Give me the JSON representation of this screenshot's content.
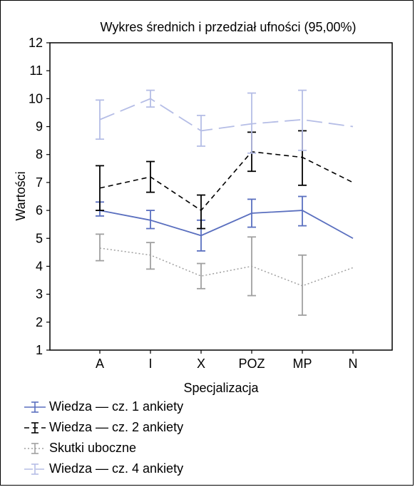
{
  "chart_data": {
    "type": "line",
    "title": "Wykres średnich i przedział ufności (95,00%)",
    "xlabel": "Specjalizacja",
    "ylabel": "Wartości",
    "categories": [
      "A",
      "I",
      "X",
      "POZ",
      "MP",
      "N"
    ],
    "ylim": [
      1,
      12
    ],
    "yticks": [
      1,
      2,
      3,
      4,
      5,
      6,
      7,
      8,
      9,
      10,
      11,
      12
    ],
    "grid": false,
    "legend_position": "bottom",
    "error_bars": "95% confidence interval",
    "series": [
      {
        "name": "Wiedza — cz. 1 ankiety",
        "color": "#5a6fbf",
        "line_style": "solid",
        "values": [
          6.0,
          5.65,
          5.1,
          5.9,
          6.0,
          5.0
        ],
        "ci_low": [
          5.8,
          5.35,
          4.55,
          5.4,
          5.45,
          null
        ],
        "ci_high": [
          6.3,
          6.0,
          5.65,
          6.4,
          6.5,
          null
        ]
      },
      {
        "name": "Wiedza — cz. 2 ankiety",
        "color": "#000000",
        "line_style": "dashed",
        "values": [
          6.8,
          7.2,
          6.0,
          8.1,
          7.9,
          7.0
        ],
        "ci_low": [
          6.0,
          6.65,
          5.35,
          7.4,
          6.9,
          null
        ],
        "ci_high": [
          7.6,
          7.75,
          6.55,
          8.8,
          8.85,
          null
        ]
      },
      {
        "name": "Skutki uboczne",
        "color": "#a0a0a0",
        "line_style": "dotted",
        "values": [
          4.65,
          4.4,
          3.65,
          4.0,
          3.3,
          3.95
        ],
        "ci_low": [
          4.2,
          3.9,
          3.2,
          2.95,
          2.25,
          null
        ],
        "ci_high": [
          5.15,
          4.85,
          4.1,
          5.05,
          4.4,
          null
        ]
      },
      {
        "name": "Wiedza — cz. 4 ankiety",
        "color": "#b5bde6",
        "line_style": "longdash",
        "values": [
          9.25,
          10.0,
          8.85,
          9.1,
          9.25,
          9.0
        ],
        "ci_low": [
          8.55,
          9.7,
          8.3,
          8.05,
          8.15,
          null
        ],
        "ci_high": [
          9.95,
          10.3,
          9.4,
          10.2,
          10.3,
          null
        ]
      }
    ]
  }
}
